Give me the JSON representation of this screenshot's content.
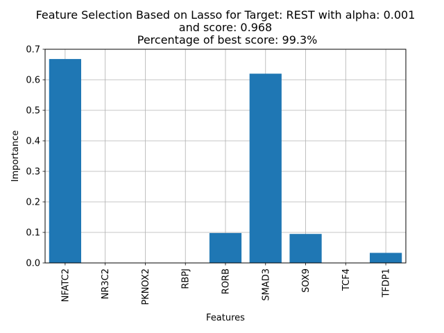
{
  "chart_data": {
    "type": "bar",
    "title_lines": [
      "Feature Selection Based on Lasso for Target: REST with alpha: 0.001",
      "and score: 0.968",
      " Percentage of best score: 99.3%"
    ],
    "xlabel": "Features",
    "ylabel": "Importance",
    "categories": [
      "NFATC2",
      "NR3C2",
      "PKNOX2",
      "RBPJ",
      "RORB",
      "SMAD3",
      "SOX9",
      "TCF4",
      "TFDP1"
    ],
    "values": [
      0.668,
      0.0,
      0.0,
      0.0,
      0.098,
      0.62,
      0.095,
      0.0,
      0.033
    ],
    "ylim": [
      0,
      0.7
    ],
    "yticks": [
      "0.0",
      "0.1",
      "0.2",
      "0.3",
      "0.4",
      "0.5",
      "0.6",
      "0.7"
    ],
    "grid": true,
    "bar_color": "#1f77b4"
  }
}
